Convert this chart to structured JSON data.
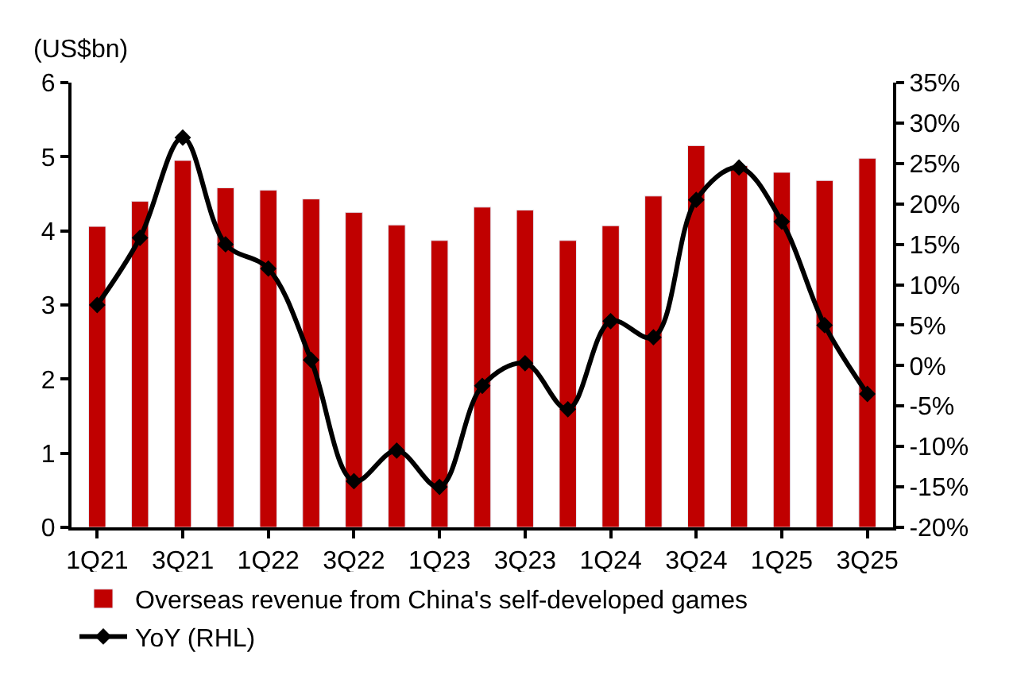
{
  "chart_data": {
    "type": "bar",
    "categories": [
      "1Q21",
      null,
      "3Q21",
      null,
      "1Q22",
      null,
      "3Q22",
      null,
      "1Q23",
      null,
      "3Q23",
      null,
      "1Q24",
      null,
      "3Q24",
      null,
      "1Q25",
      null,
      "3Q25"
    ],
    "series": [
      {
        "name": "Overseas revenue from China's self-developed games",
        "color": "#c00000",
        "values": [
          4.06,
          4.4,
          4.95,
          4.58,
          4.55,
          4.43,
          4.25,
          4.08,
          3.87,
          4.32,
          4.28,
          3.87,
          4.07,
          4.47,
          5.15,
          4.88,
          4.79,
          4.68,
          4.98
        ]
      },
      {
        "name": "YoY (RHL)",
        "type": "line",
        "axis": "y2",
        "color": "#000000",
        "marker": "diamond",
        "line_style": "solid",
        "values": [
          7.5,
          15.8,
          28.2,
          15.0,
          12.0,
          0.7,
          -14.3,
          -10.5,
          -15.0,
          -2.5,
          0.3,
          -5.4,
          5.5,
          3.5,
          20.5,
          24.5,
          17.8,
          5.0,
          -3.5
        ]
      }
    ],
    "ylim": [
      0,
      6
    ],
    "yticks": [
      0,
      1,
      2,
      3,
      4,
      5,
      6
    ],
    "y2lim": [
      -20,
      35
    ],
    "y2ticks": [
      {
        "value": -20,
        "label": "-20%"
      },
      {
        "value": -15,
        "label": "-15%"
      },
      {
        "value": -10,
        "label": "-10%"
      },
      {
        "value": -5,
        "label": "-5%"
      },
      {
        "value": 0,
        "label": "0%"
      },
      {
        "value": 5,
        "label": "5%"
      },
      {
        "value": 10,
        "label": "10%"
      },
      {
        "value": 15,
        "label": "15%"
      },
      {
        "value": 20,
        "label": "20%"
      },
      {
        "value": 25,
        "label": "25%"
      },
      {
        "value": 30,
        "label": "30%"
      },
      {
        "value": 35,
        "label": "35%"
      }
    ],
    "annotations": [
      "(US$bn)"
    ],
    "legend": "bottom"
  }
}
